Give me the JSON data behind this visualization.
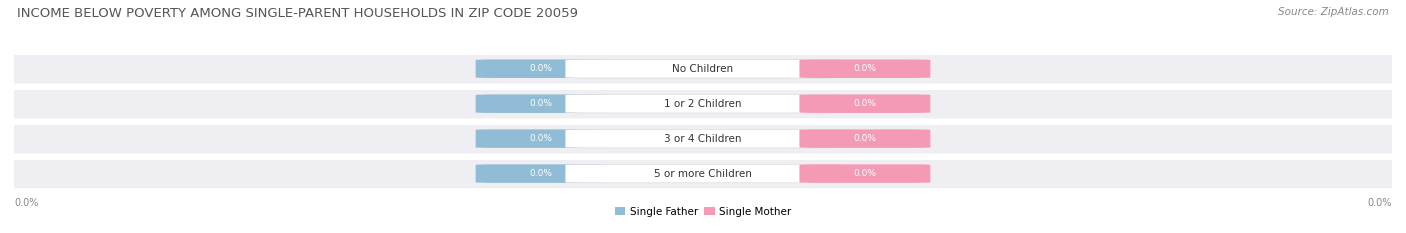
{
  "title": "INCOME BELOW POVERTY AMONG SINGLE-PARENT HOUSEHOLDS IN ZIP CODE 20059",
  "source": "Source: ZipAtlas.com",
  "categories": [
    "No Children",
    "1 or 2 Children",
    "3 or 4 Children",
    "5 or more Children"
  ],
  "father_values": [
    0.0,
    0.0,
    0.0,
    0.0
  ],
  "mother_values": [
    0.0,
    0.0,
    0.0,
    0.0
  ],
  "father_color": "#90bcd5",
  "mother_color": "#f49ab5",
  "background_color": "#ffffff",
  "row_bg_color": "#eeeef3",
  "row_bg_color_alt": "#e4e4ec",
  "title_fontsize": 9.5,
  "source_fontsize": 7.5,
  "legend_father": "Single Father",
  "legend_mother": "Single Mother",
  "x_left_label": "0.0%",
  "x_right_label": "0.0%",
  "label_fontsize": 7.5,
  "value_fontsize": 6.5,
  "axis_label_fontsize": 7
}
